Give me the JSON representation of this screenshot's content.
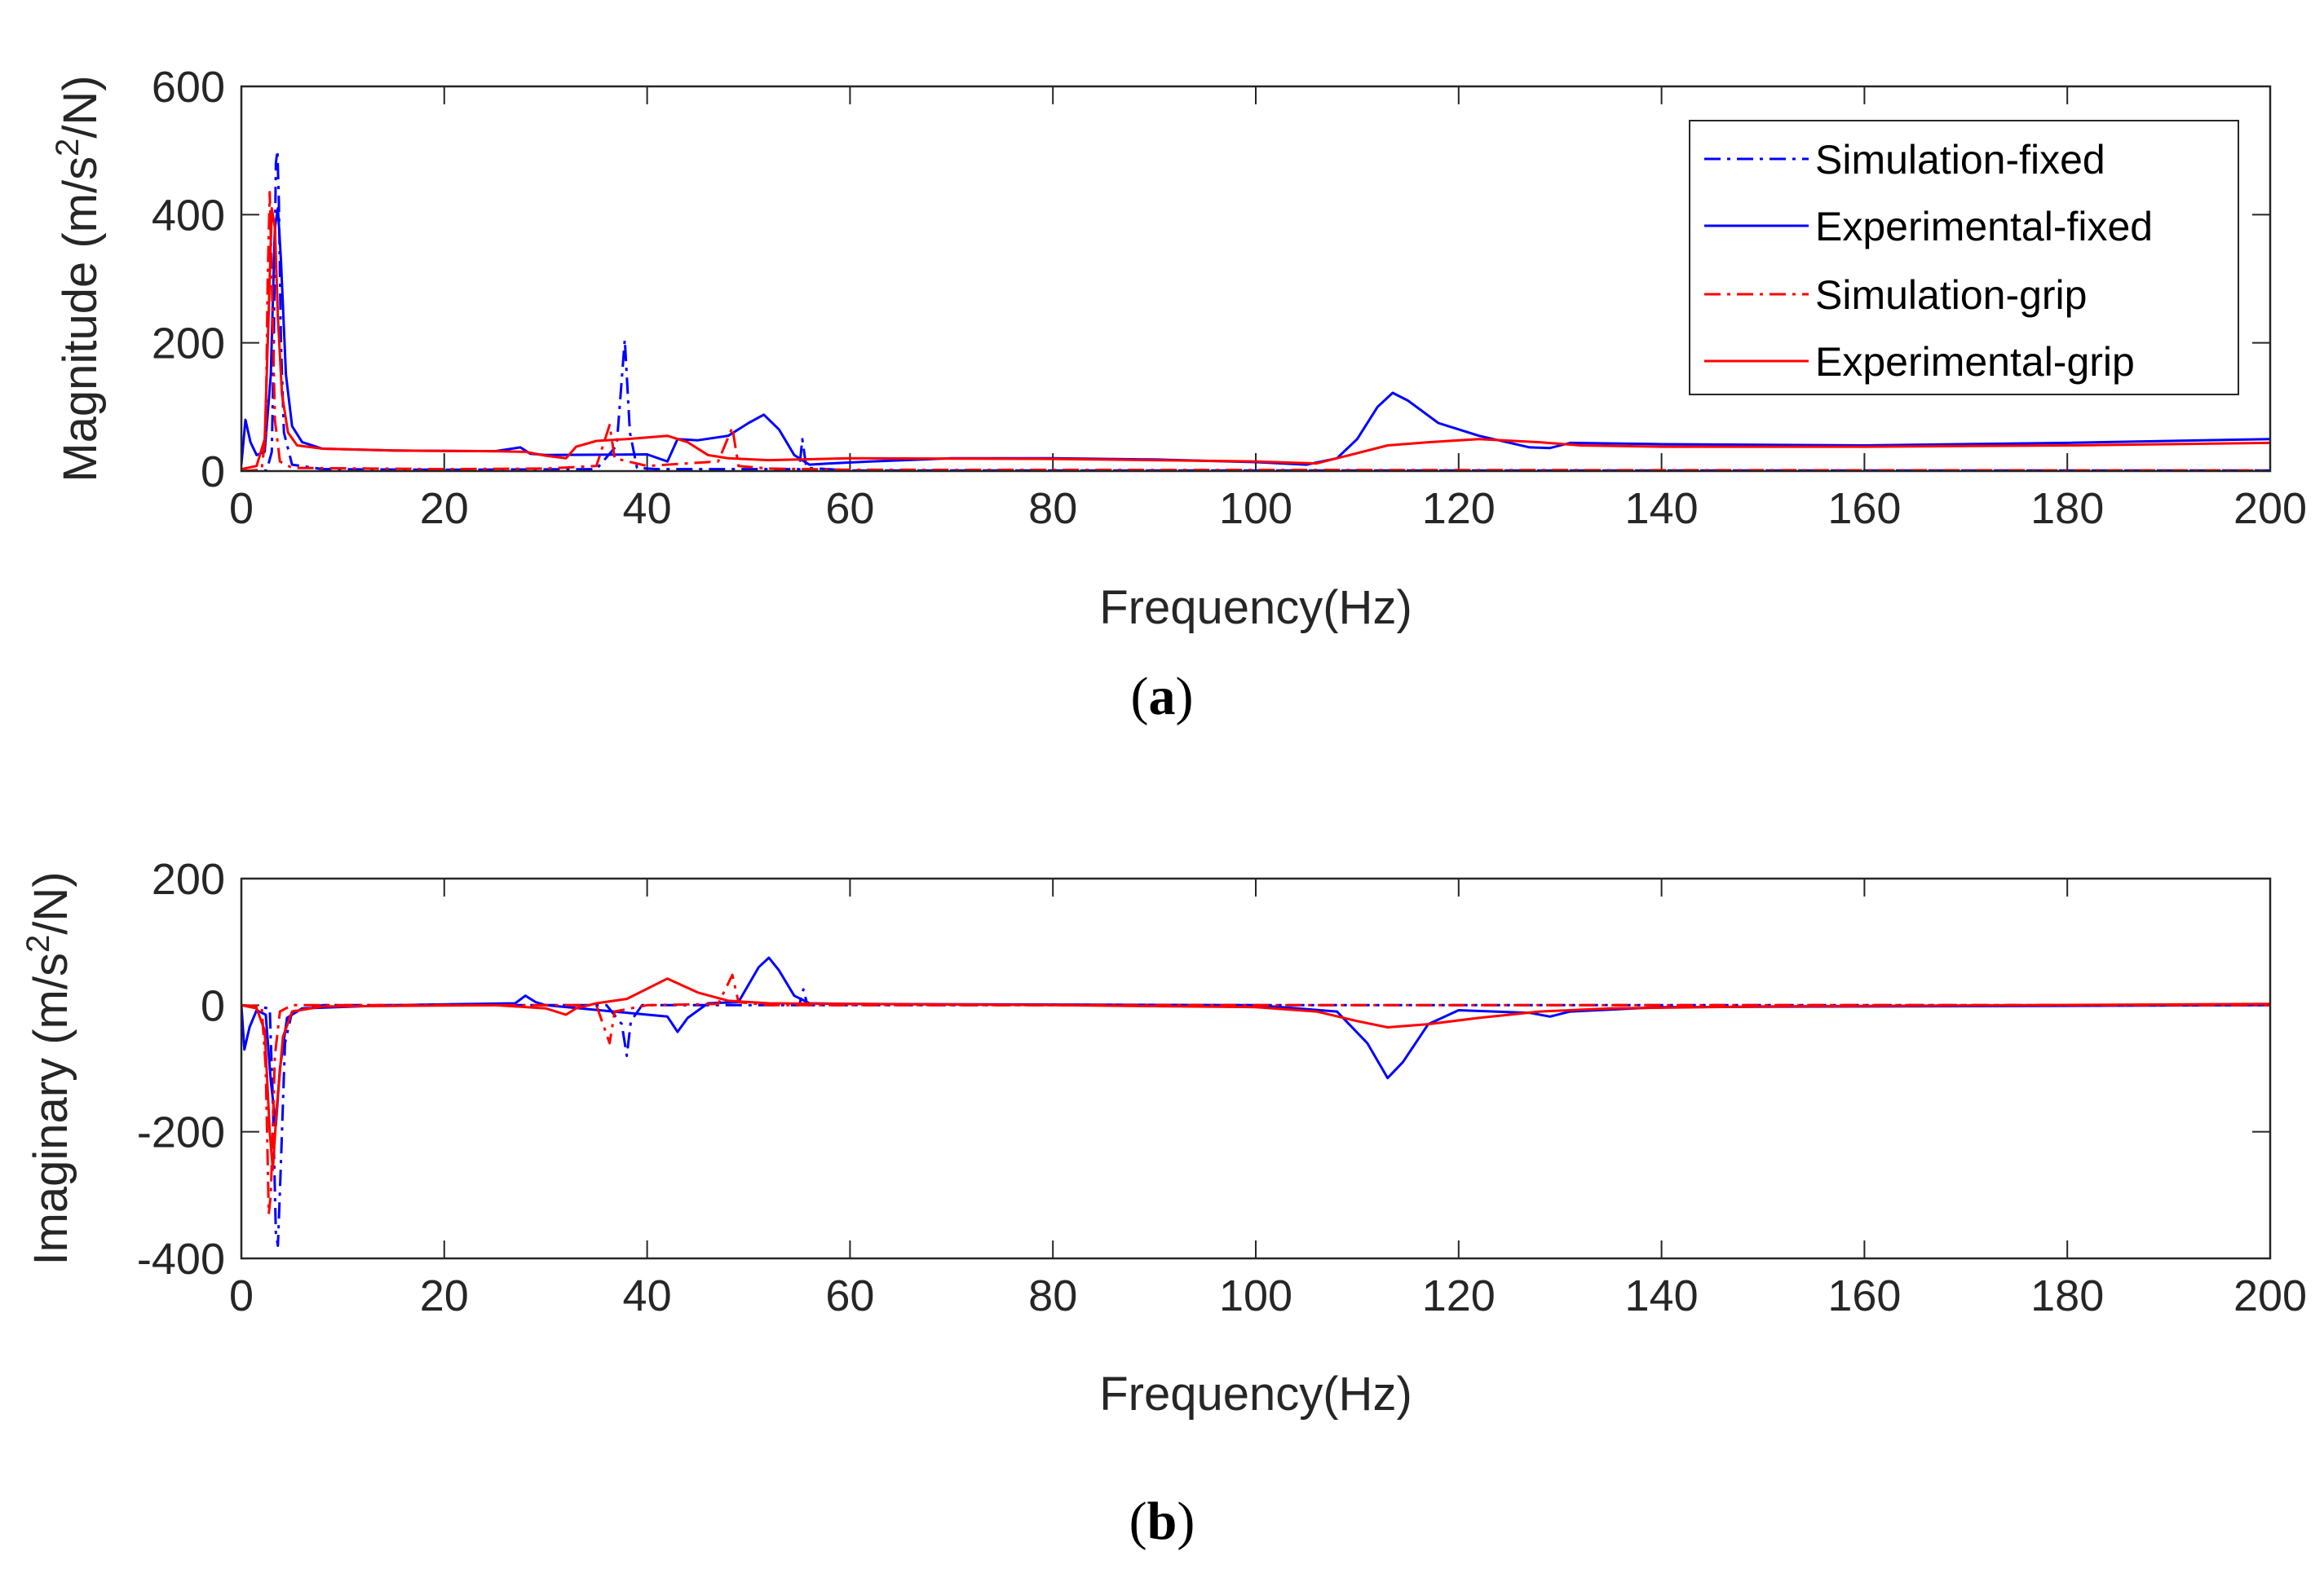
{
  "chart_data": [
    {
      "panel": "a",
      "panel_label": {
        "open": "(",
        "letter": "a",
        "close": ")"
      },
      "type": "line",
      "xlabel": "Frequency(Hz)",
      "ylabel": {
        "pre": "Magnitude (m/s",
        "sup": "2",
        "post": "/N)"
      },
      "xlim": [
        0,
        200
      ],
      "ylim": [
        0,
        600
      ],
      "xticks": [
        0,
        20,
        40,
        60,
        80,
        100,
        120,
        140,
        160,
        180,
        200
      ],
      "yticks": [
        0,
        200,
        400,
        600
      ],
      "legend_position": "top-right",
      "series": [
        {
          "name": "Simulation-fixed",
          "color": "#0000ff",
          "dash": "dashdot",
          "points": [
            [
              0,
              0
            ],
            [
              2.5,
              1
            ],
            [
              3.0,
              30
            ],
            [
              3.2,
              200
            ],
            [
              3.4,
              480
            ],
            [
              3.55,
              500
            ],
            [
              3.7,
              420
            ],
            [
              3.9,
              200
            ],
            [
              4.2,
              60
            ],
            [
              5,
              10
            ],
            [
              8,
              3
            ],
            [
              20,
              2
            ],
            [
              35,
              3
            ],
            [
              37,
              40
            ],
            [
              37.8,
              205
            ],
            [
              38.3,
              60
            ],
            [
              39,
              5
            ],
            [
              41,
              3
            ],
            [
              55,
              3
            ],
            [
              55.3,
              50
            ],
            [
              55.7,
              5
            ],
            [
              60,
              1
            ],
            [
              200,
              1
            ]
          ]
        },
        {
          "name": "Experimental-fixed",
          "color": "#0000ff",
          "dash": "solid",
          "points": [
            [
              0,
              10
            ],
            [
              0.4,
              80
            ],
            [
              0.9,
              45
            ],
            [
              1.5,
              25
            ],
            [
              2.3,
              30
            ],
            [
              2.9,
              150
            ],
            [
              3.3,
              380
            ],
            [
              3.6,
              410
            ],
            [
              3.9,
              330
            ],
            [
              4.4,
              150
            ],
            [
              5,
              70
            ],
            [
              6,
              45
            ],
            [
              8,
              35
            ],
            [
              15,
              32
            ],
            [
              25,
              31
            ],
            [
              27.5,
              37
            ],
            [
              28.5,
              27
            ],
            [
              30,
              25
            ],
            [
              40,
              26
            ],
            [
              42,
              15
            ],
            [
              43,
              50
            ],
            [
              45,
              48
            ],
            [
              48,
              55
            ],
            [
              50,
              75
            ],
            [
              51.5,
              88
            ],
            [
              53,
              65
            ],
            [
              54.5,
              25
            ],
            [
              56,
              10
            ],
            [
              58,
              12
            ],
            [
              62,
              15
            ],
            [
              70,
              20
            ],
            [
              80,
              20
            ],
            [
              90,
              18
            ],
            [
              100,
              14
            ],
            [
              105,
              10
            ],
            [
              108,
              20
            ],
            [
              110,
              50
            ],
            [
              112,
              100
            ],
            [
              113.5,
              122
            ],
            [
              115,
              110
            ],
            [
              118,
              75
            ],
            [
              122,
              55
            ],
            [
              127,
              37
            ],
            [
              129,
              36
            ],
            [
              131,
              44
            ],
            [
              140,
              42
            ],
            [
              160,
              40
            ],
            [
              180,
              44
            ],
            [
              200,
              50
            ]
          ]
        },
        {
          "name": "Simulation-grip",
          "color": "#ff0000",
          "dash": "dashdot",
          "points": [
            [
              0,
              0
            ],
            [
              2.0,
              2
            ],
            [
              2.4,
              60
            ],
            [
              2.6,
              300
            ],
            [
              2.8,
              435
            ],
            [
              3.0,
              300
            ],
            [
              3.3,
              80
            ],
            [
              3.8,
              15
            ],
            [
              5,
              5
            ],
            [
              20,
              3
            ],
            [
              30,
              4
            ],
            [
              35,
              8
            ],
            [
              36.3,
              72
            ],
            [
              36.8,
              20
            ],
            [
              40,
              8
            ],
            [
              47,
              15
            ],
            [
              48.4,
              68
            ],
            [
              49,
              8
            ],
            [
              52,
              4
            ],
            [
              60,
              2
            ],
            [
              200,
              1
            ]
          ]
        },
        {
          "name": "Experimental-grip",
          "color": "#ff0000",
          "dash": "solid",
          "points": [
            [
              0,
              3
            ],
            [
              1.5,
              8
            ],
            [
              2.3,
              50
            ],
            [
              2.7,
              250
            ],
            [
              3.0,
              410
            ],
            [
              3.3,
              380
            ],
            [
              3.6,
              240
            ],
            [
              4.0,
              120
            ],
            [
              4.6,
              60
            ],
            [
              5.5,
              40
            ],
            [
              8,
              35
            ],
            [
              15,
              32
            ],
            [
              25,
              31
            ],
            [
              28,
              30
            ],
            [
              30,
              24
            ],
            [
              32,
              20
            ],
            [
              33,
              38
            ],
            [
              35,
              47
            ],
            [
              38,
              50
            ],
            [
              42,
              55
            ],
            [
              44,
              45
            ],
            [
              46,
              25
            ],
            [
              48,
              20
            ],
            [
              52,
              17
            ],
            [
              60,
              20
            ],
            [
              80,
              19
            ],
            [
              100,
              15
            ],
            [
              106,
              12
            ],
            [
              110,
              28
            ],
            [
              113,
              40
            ],
            [
              117,
              45
            ],
            [
              122,
              50
            ],
            [
              128,
              45
            ],
            [
              132,
              40
            ],
            [
              140,
              38
            ],
            [
              160,
              38
            ],
            [
              180,
              40
            ],
            [
              200,
              44
            ]
          ]
        }
      ]
    },
    {
      "panel": "b",
      "panel_label": {
        "open": "(",
        "letter": "b",
        "close": ")"
      },
      "type": "line",
      "xlabel": "Frequency(Hz)",
      "ylabel": {
        "pre": "Imaginary (m/s",
        "sup": "2",
        "post": "/N)"
      },
      "xlim": [
        0,
        200
      ],
      "ylim": [
        -400,
        200
      ],
      "xticks": [
        0,
        20,
        40,
        60,
        80,
        100,
        120,
        140,
        160,
        180,
        200
      ],
      "yticks": [
        -400,
        -200,
        0,
        200
      ],
      "series": [
        {
          "name": "Simulation-fixed",
          "color": "#0000ff",
          "dash": "dashdot",
          "points": [
            [
              0,
              0
            ],
            [
              2.8,
              -5
            ],
            [
              3.1,
              -150
            ],
            [
              3.4,
              -360
            ],
            [
              3.6,
              -380
            ],
            [
              3.9,
              -250
            ],
            [
              4.3,
              -60
            ],
            [
              5,
              -10
            ],
            [
              8,
              0
            ],
            [
              36,
              0
            ],
            [
              37.5,
              -30
            ],
            [
              38.0,
              -80
            ],
            [
              38.4,
              -25
            ],
            [
              39.5,
              0
            ],
            [
              55,
              0
            ],
            [
              55.4,
              25
            ],
            [
              55.8,
              0
            ],
            [
              200,
              0
            ]
          ]
        },
        {
          "name": "Experimental-fixed",
          "color": "#0000ff",
          "dash": "solid",
          "points": [
            [
              0,
              0
            ],
            [
              0.3,
              -70
            ],
            [
              0.8,
              -35
            ],
            [
              1.5,
              -8
            ],
            [
              2.4,
              -15
            ],
            [
              2.9,
              -120
            ],
            [
              3.4,
              -190
            ],
            [
              3.8,
              -100
            ],
            [
              4.5,
              -20
            ],
            [
              6,
              -5
            ],
            [
              15,
              0
            ],
            [
              27,
              3
            ],
            [
              28,
              15
            ],
            [
              29,
              5
            ],
            [
              30,
              0
            ],
            [
              42,
              -18
            ],
            [
              43,
              -42
            ],
            [
              44,
              -20
            ],
            [
              46,
              3
            ],
            [
              49,
              5
            ],
            [
              51,
              60
            ],
            [
              52,
              75
            ],
            [
              53,
              55
            ],
            [
              54.5,
              15
            ],
            [
              56,
              3
            ],
            [
              60,
              2
            ],
            [
              100,
              0
            ],
            [
              108,
              -10
            ],
            [
              111,
              -60
            ],
            [
              113,
              -115
            ],
            [
              114.5,
              -90
            ],
            [
              117,
              -30
            ],
            [
              120,
              -8
            ],
            [
              127,
              -12
            ],
            [
              129,
              -18
            ],
            [
              131,
              -10
            ],
            [
              140,
              -3
            ],
            [
              200,
              0
            ]
          ]
        },
        {
          "name": "Simulation-grip",
          "color": "#ff0000",
          "dash": "dashdot",
          "points": [
            [
              0,
              0
            ],
            [
              2.0,
              -2
            ],
            [
              2.4,
              -100
            ],
            [
              2.7,
              -330
            ],
            [
              2.9,
              -300
            ],
            [
              3.3,
              -80
            ],
            [
              3.8,
              -10
            ],
            [
              5,
              0
            ],
            [
              35,
              0
            ],
            [
              36.3,
              -60
            ],
            [
              36.8,
              -10
            ],
            [
              40,
              0
            ],
            [
              47,
              2
            ],
            [
              48.4,
              48
            ],
            [
              49,
              5
            ],
            [
              52,
              0
            ],
            [
              200,
              0
            ]
          ]
        },
        {
          "name": "Experimental-grip",
          "color": "#ff0000",
          "dash": "solid",
          "points": [
            [
              0,
              0
            ],
            [
              1.5,
              -5
            ],
            [
              2.3,
              -40
            ],
            [
              2.8,
              -200
            ],
            [
              3.1,
              -260
            ],
            [
              3.5,
              -160
            ],
            [
              4.1,
              -50
            ],
            [
              5,
              -10
            ],
            [
              8,
              -2
            ],
            [
              25,
              0
            ],
            [
              30,
              -5
            ],
            [
              32,
              -15
            ],
            [
              33,
              -5
            ],
            [
              35,
              3
            ],
            [
              38,
              10
            ],
            [
              42,
              42
            ],
            [
              45,
              20
            ],
            [
              48,
              7
            ],
            [
              52,
              3
            ],
            [
              60,
              2
            ],
            [
              80,
              0
            ],
            [
              100,
              -3
            ],
            [
              106,
              -10
            ],
            [
              110,
              -25
            ],
            [
              113,
              -35
            ],
            [
              117,
              -30
            ],
            [
              122,
              -20
            ],
            [
              128,
              -10
            ],
            [
              135,
              -5
            ],
            [
              150,
              -2
            ],
            [
              200,
              2
            ]
          ]
        }
      ]
    }
  ]
}
